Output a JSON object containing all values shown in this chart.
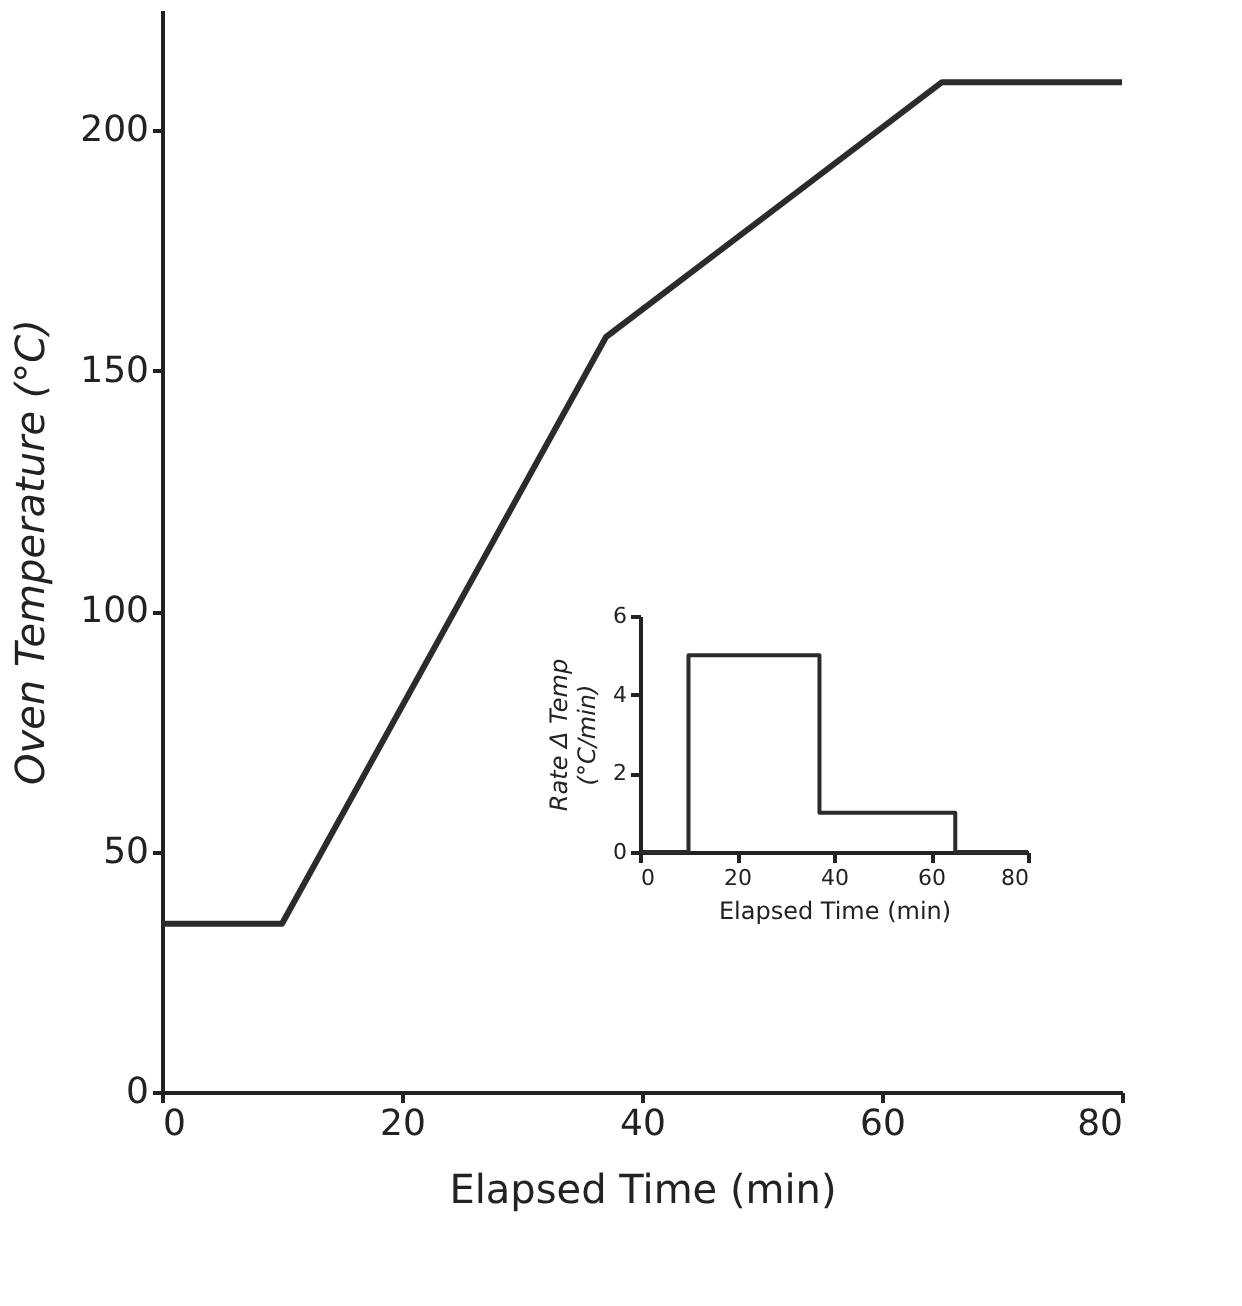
{
  "chart_data": [
    {
      "type": "line",
      "xlabel": "Elapsed Time (min)",
      "ylabel": "Oven Temperature (°C)",
      "x": [
        0,
        10,
        37,
        65,
        80
      ],
      "values": [
        35,
        35,
        157,
        210,
        210
      ],
      "color": "#2b2b2b",
      "xlim": [
        0,
        80
      ],
      "xticks": [
        0,
        20,
        40,
        60,
        80
      ],
      "ylim": [
        0,
        225
      ],
      "yticks": [
        0,
        50,
        100,
        150,
        200
      ],
      "grid": false
    },
    {
      "type": "step",
      "xlabel": "Elapsed Time (min)",
      "ylabel": "Rate Δ Temp\n(°C/min)",
      "x": [
        0,
        10,
        37,
        65,
        80
      ],
      "values": [
        0,
        5,
        1,
        0,
        0
      ],
      "color": "#2b2b2b",
      "xlim": [
        0,
        80
      ],
      "xticks": [
        0,
        20,
        40,
        60,
        80
      ],
      "ylim": [
        0,
        6
      ],
      "yticks": [
        0,
        2,
        4,
        6
      ],
      "grid": false
    }
  ]
}
